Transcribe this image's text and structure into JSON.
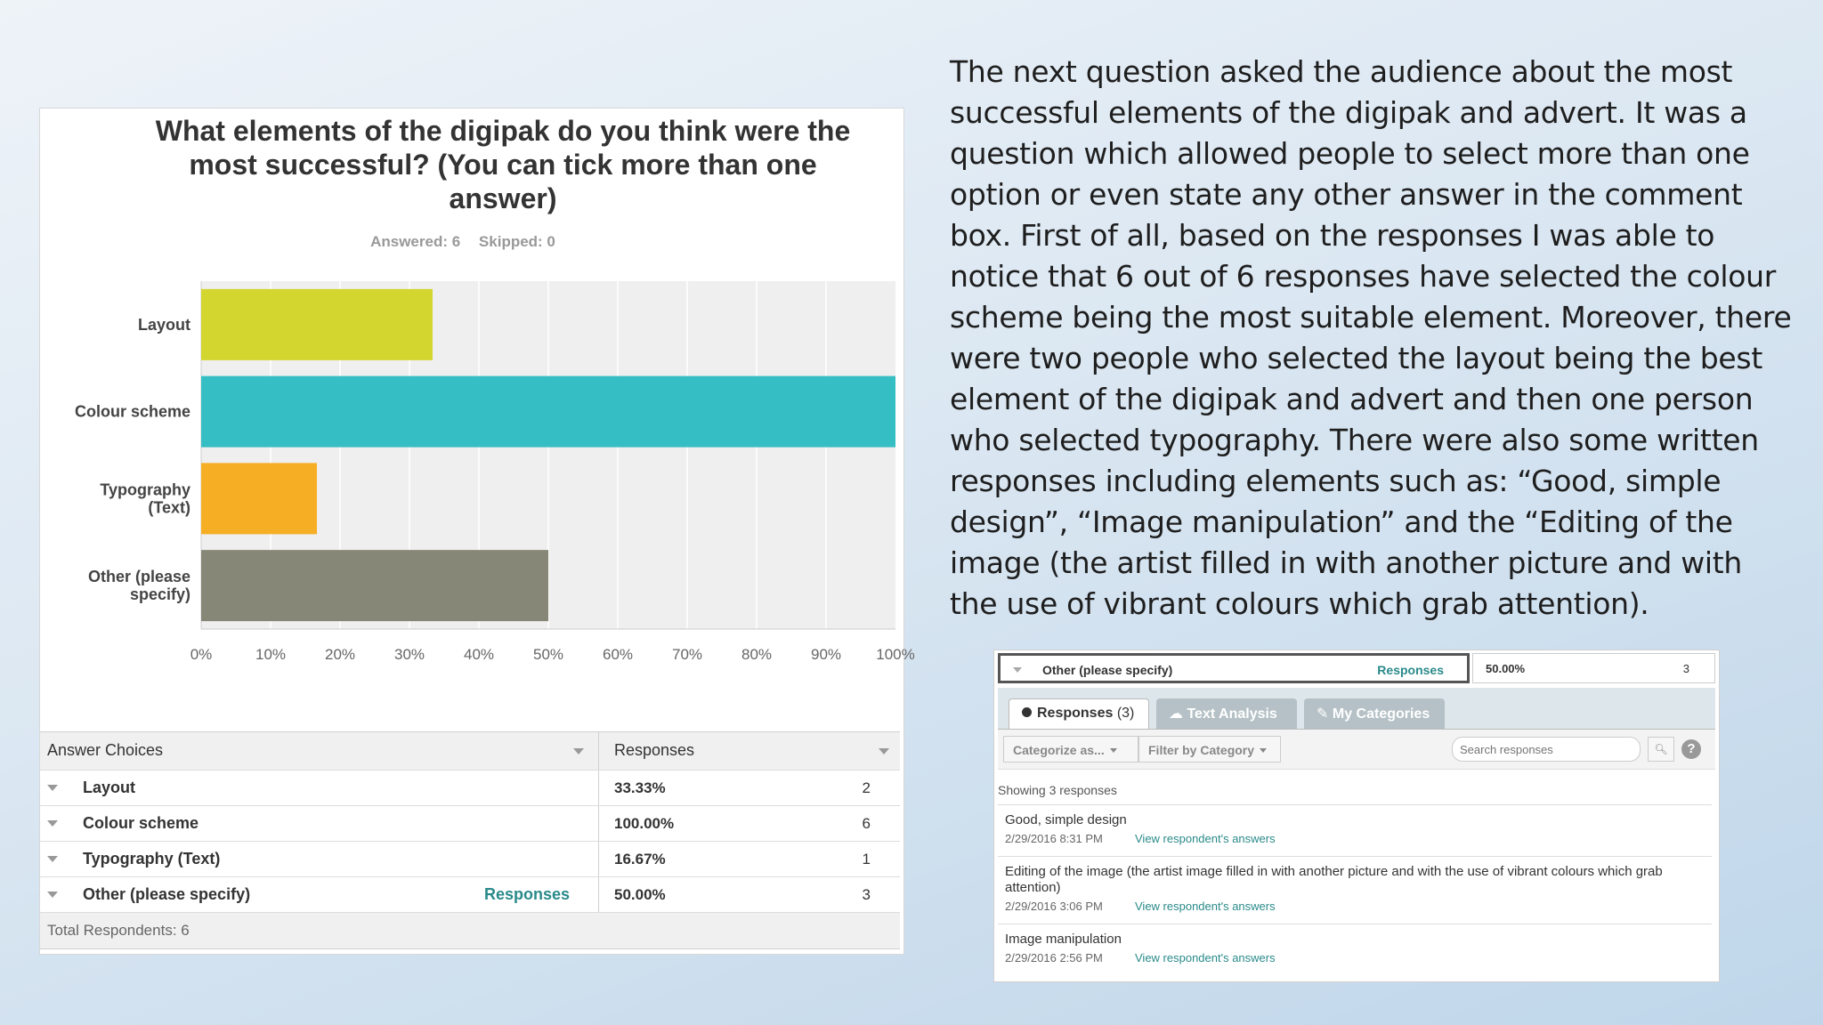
{
  "survey": {
    "title": "What elements of the digipak do you think were the most successful? (You can tick more than one answer)",
    "answered": "Answered: 6",
    "skipped": "Skipped: 0",
    "table": {
      "col_choices": "Answer Choices",
      "col_responses": "Responses",
      "rows": [
        {
          "label": "Layout",
          "pct": "33.33%",
          "count": "2",
          "link": ""
        },
        {
          "label": "Colour scheme",
          "pct": "100.00%",
          "count": "6",
          "link": ""
        },
        {
          "label": "Typography (Text)",
          "pct": "16.67%",
          "count": "1",
          "link": ""
        },
        {
          "label": "Other (please specify)",
          "pct": "50.00%",
          "count": "3",
          "link": "Responses"
        }
      ],
      "total": "Total Respondents: 6"
    }
  },
  "chart_data": {
    "type": "bar",
    "orientation": "horizontal",
    "categories": [
      "Layout",
      "Colour scheme",
      "Typography\n(Text)",
      "Other (please\nspecify)"
    ],
    "values": [
      33.33,
      100,
      16.67,
      50
    ],
    "colors": [
      "#d2d62e",
      "#35bec3",
      "#f6ae24",
      "#878778"
    ],
    "xlim": [
      0,
      100
    ],
    "xticks": [
      "0%",
      "10%",
      "20%",
      "30%",
      "40%",
      "50%",
      "60%",
      "70%",
      "80%",
      "90%",
      "100%"
    ],
    "grid": true,
    "title": "What elements of the digipak do you think were the most successful? (You can tick more than one answer)"
  },
  "commentary": {
    "text": "The next question asked the audience about the most successful elements of the digipak and advert. It was a question which allowed people to select more than one option or even state any other answer in the comment box. First of all, based on the responses I was able to notice that 6 out of 6 responses have selected the colour scheme being the most suitable element. Moreover, there were two people who selected the layout being the best element of the digipak and advert and then one person who selected typography. There were also some written responses including elements such as: “Good, simple design”, “Image manipulation” and the “Editing of the image (the artist filled in with another picture and with the use of vibrant colours which grab attention)."
  },
  "responses_panel": {
    "header_label": "Other (please specify)",
    "header_link": "Responses",
    "header_pct": "50.00%",
    "header_count": "3",
    "tabs": {
      "responses": "Responses",
      "responses_count": "(3)",
      "text_analysis": "Text Analysis",
      "my_categories": "My Categories"
    },
    "toolbar": {
      "categorize": "Categorize as...",
      "filter": "Filter by Category",
      "search_placeholder": "Search responses"
    },
    "showing": "Showing 3 responses",
    "view_link": "View respondent's answers",
    "items": [
      {
        "text": "Good, simple design",
        "date": "2/29/2016 8:31 PM",
        "link": "View respondent's answers"
      },
      {
        "text": "Editing of the image (the artist image filled in with another picture and with the use of vibrant colours which grab attention)",
        "date": "2/29/2016 3:06 PM",
        "link": "View respondent's answers"
      },
      {
        "text": "Image manipulation",
        "date": "2/29/2016 2:56 PM",
        "link": "View respondent's answers"
      }
    ]
  }
}
